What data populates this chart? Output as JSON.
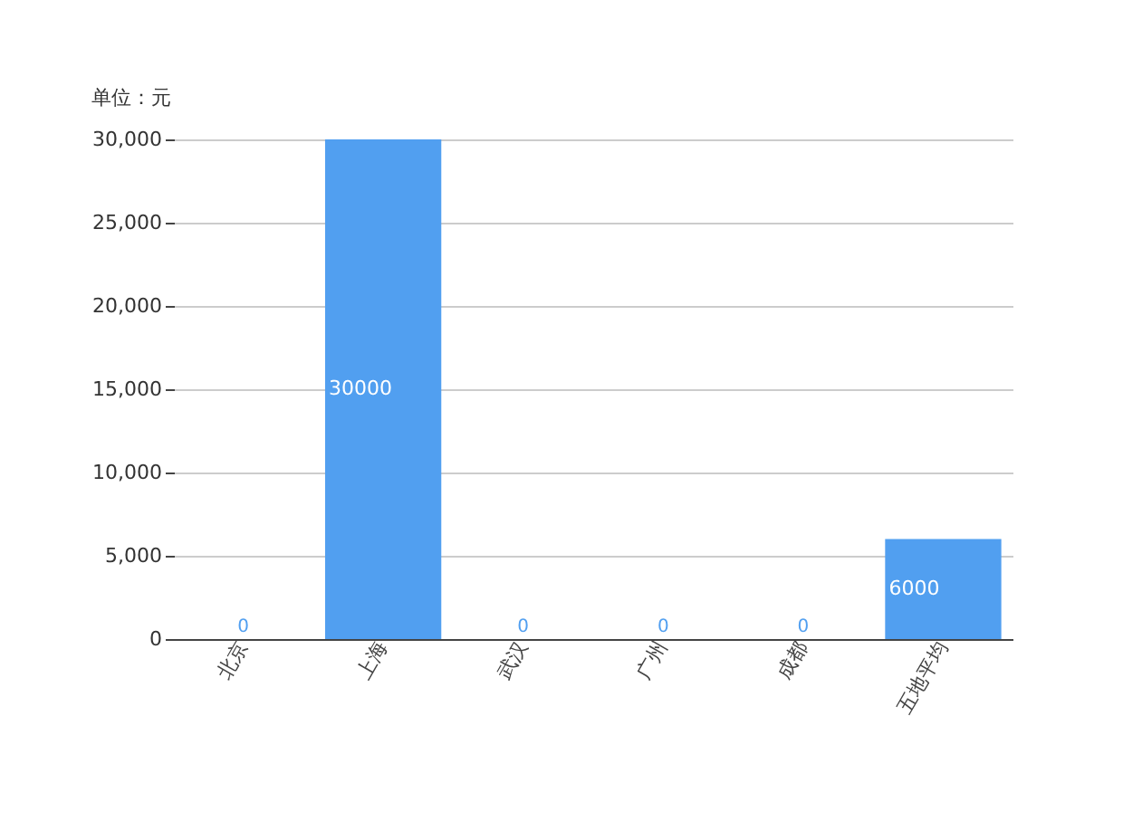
{
  "chart_data": {
    "type": "bar",
    "ylabel": "单位：元",
    "categories": [
      "北京",
      "上海",
      "武汉",
      "广州",
      "成都",
      "五地平均"
    ],
    "series": [
      {
        "color": "#519ff0",
        "values": [
          0,
          30000,
          0,
          0,
          0,
          6000
        ]
      }
    ],
    "ylim": [
      0,
      30000
    ],
    "yticks": [
      0,
      {
        "value": 5000,
        "label": "5,000"
      },
      {
        "value": 10000,
        "label": "10,000"
      },
      {
        "value": 15000,
        "label": "15,000"
      },
      {
        "value": 20000,
        "label": "20,000"
      },
      {
        "value": 25000,
        "label": "25,000"
      },
      {
        "value": 30000,
        "label": "30,000"
      }
    ],
    "grid": "y",
    "data_labels": true
  }
}
